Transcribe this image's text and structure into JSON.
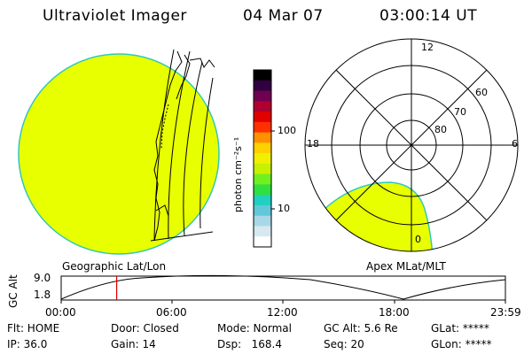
{
  "header": {
    "title": "Ultraviolet Imager",
    "date": "04 Mar 07",
    "time": "03:00:14 UT"
  },
  "colorbar": {
    "unit_label": "photon cm⁻²s⁻¹",
    "tick_100": "100",
    "tick_10": "10",
    "colors": [
      "#ffffff",
      "#d8e8f0",
      "#a8d8e8",
      "#60c8d8",
      "#20d0c0",
      "#30e040",
      "#70f020",
      "#c8f000",
      "#f0f000",
      "#ffd000",
      "#ff9000",
      "#ff3000",
      "#e00000",
      "#b00030",
      "#700050",
      "#300040",
      "#000000"
    ]
  },
  "left_panel": {
    "caption": "Geographic Lat/Lon",
    "fill_color": "#e8ff00",
    "edge_color": "#30c8b8"
  },
  "right_panel": {
    "caption": "Apex MLat/MLT",
    "mlt_12": "12",
    "mlt_18": "18",
    "mlt_6": "6",
    "mlt_0": "0",
    "lat_60": "60",
    "lat_70": "70",
    "lat_80": "80",
    "fill_color": "#e8ff00"
  },
  "timeline": {
    "ylabel": "GC Alt",
    "ytick_top": "9.0",
    "ytick_bottom": "1.8",
    "xticks": [
      "00:00",
      "06:00",
      "12:00",
      "18:00",
      "23:59"
    ],
    "marker_time_hours": 3.0,
    "marker_color": "#e00000"
  },
  "status": {
    "flt_label": "Flt: HOME",
    "ip_label": "IP: 36.0",
    "door_label": "Door: Closed",
    "gain_label": "Gain: 14",
    "mode_label": "Mode: Normal",
    "dsp_label": "Dsp:   168.4",
    "gcalt_label": "GC Alt: 5.6 Re",
    "seq_label": "Seq: 20",
    "glat_label": "GLat: *****",
    "glon_label": "GLon: *****"
  }
}
